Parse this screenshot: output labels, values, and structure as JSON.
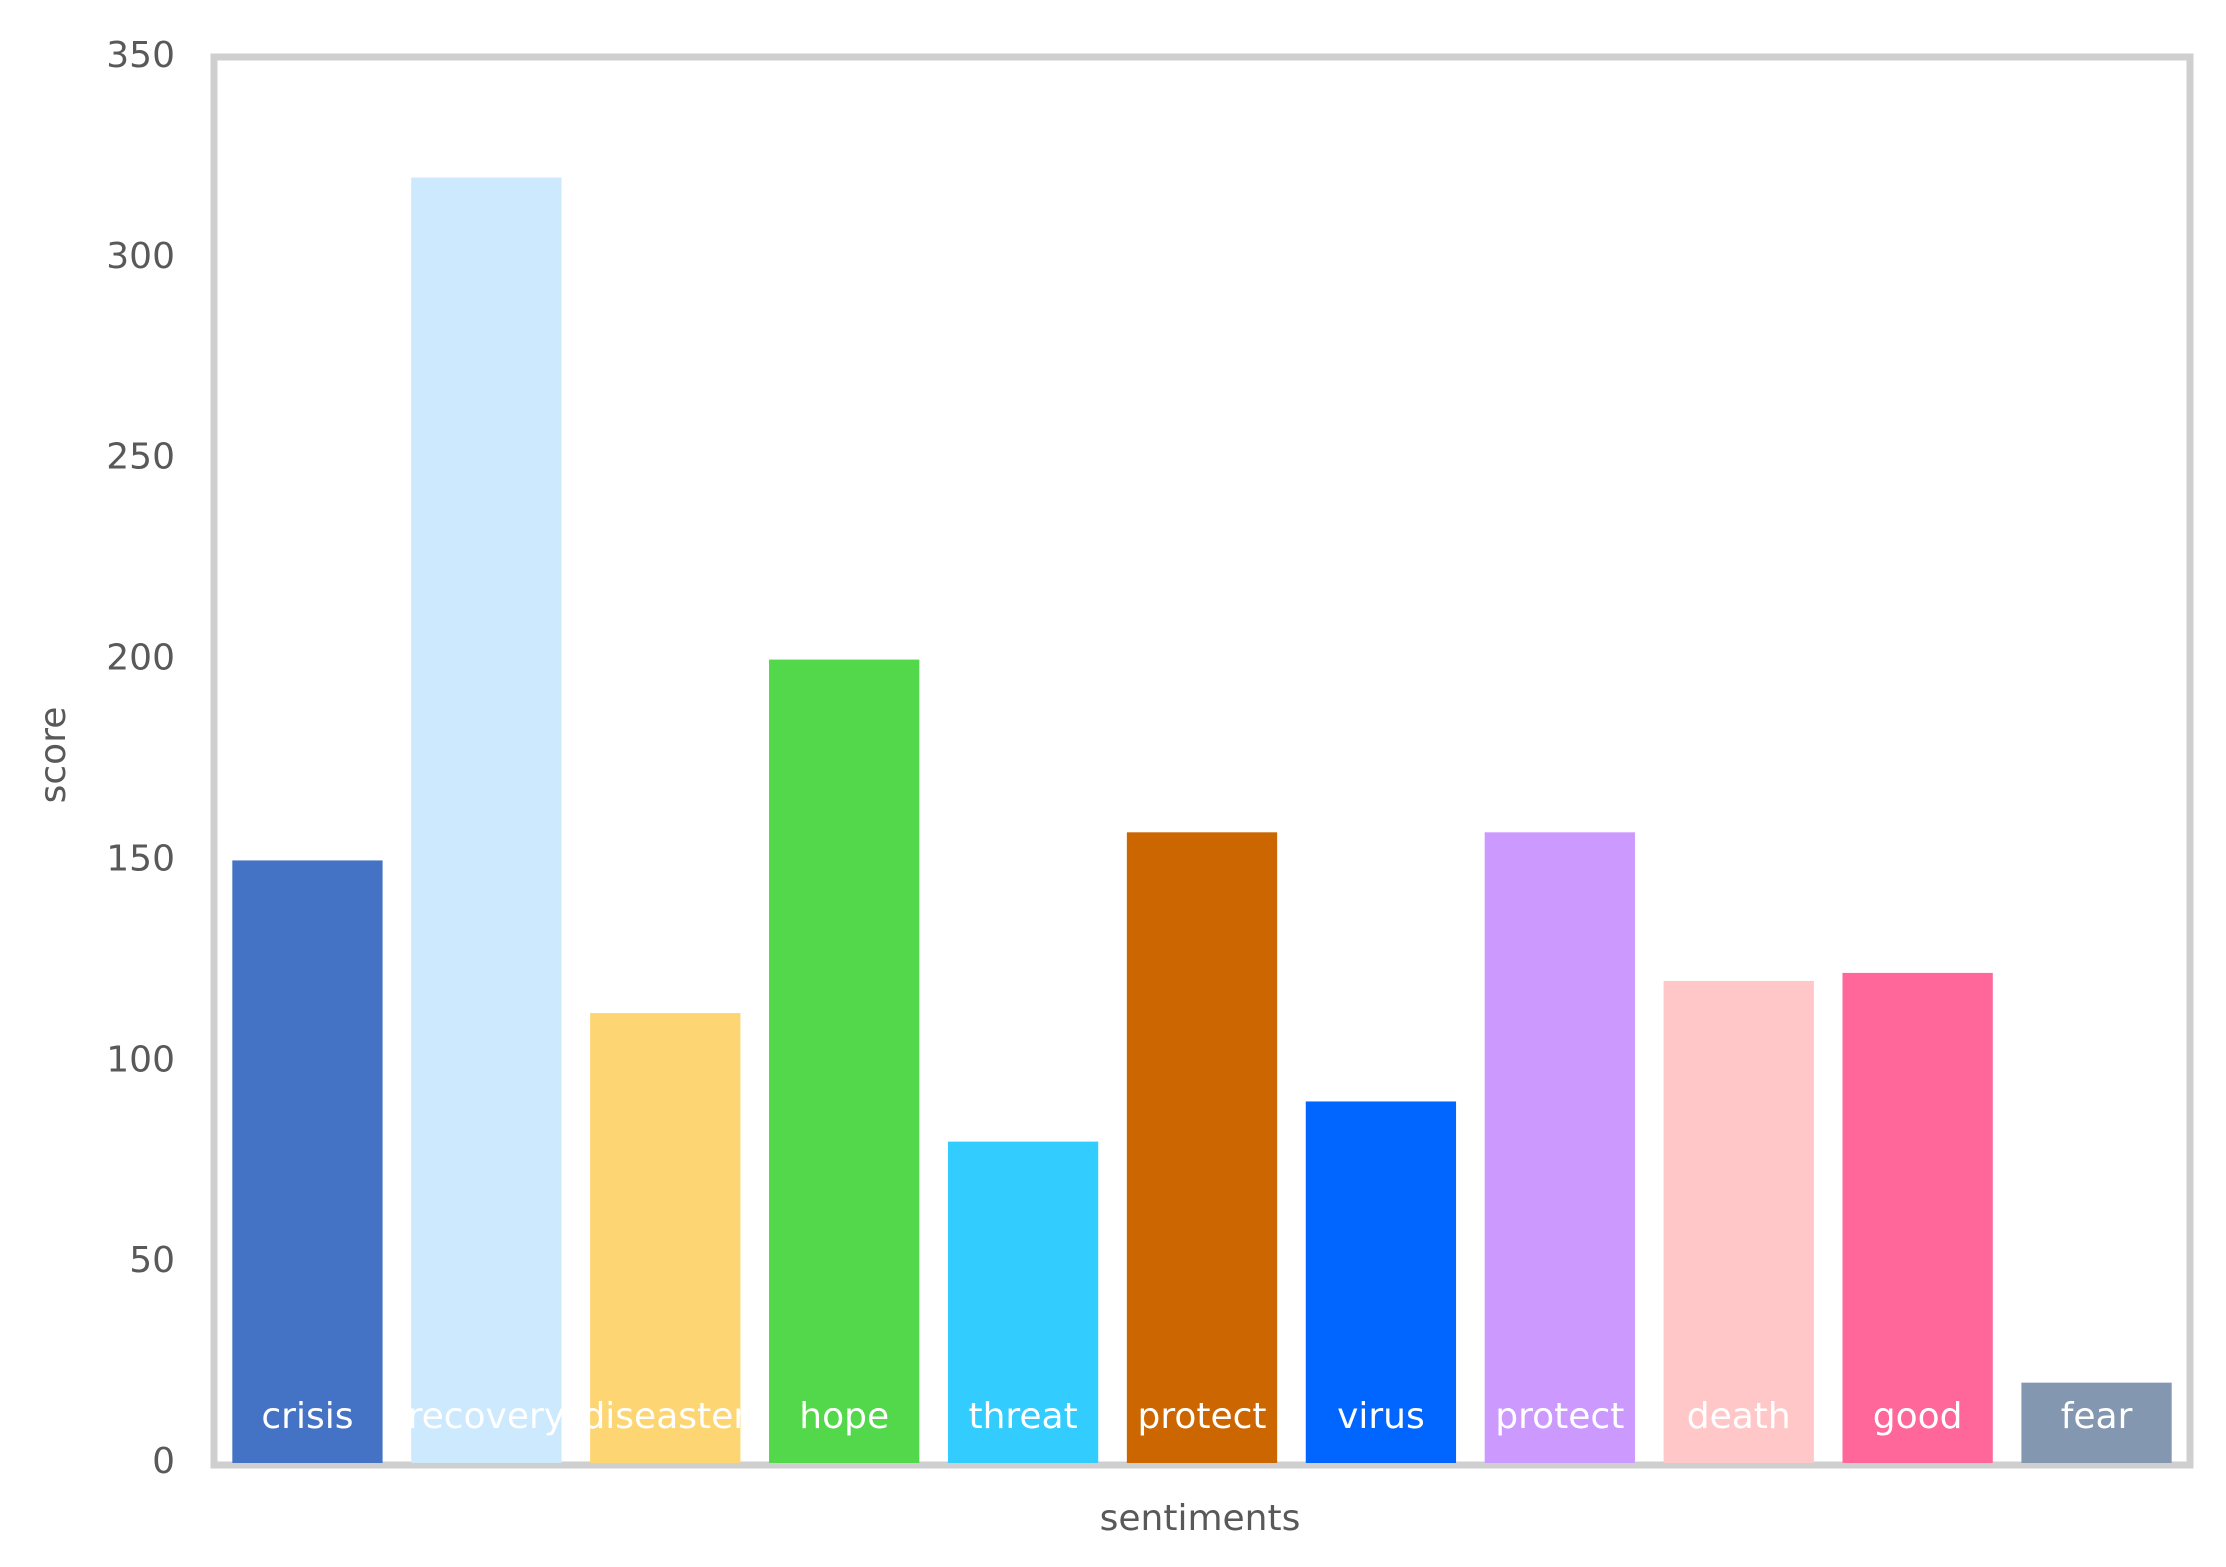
{
  "chart_data": {
    "type": "bar",
    "xlabel": "sentiments",
    "ylabel": "score",
    "categories": [
      "crisis",
      "recovery",
      "diseaster",
      "hope",
      "threat",
      "protect",
      "virus",
      "protect",
      "death",
      "good",
      "fear"
    ],
    "values": [
      150,
      320,
      112,
      200,
      80,
      157,
      90,
      157,
      120,
      122,
      20
    ],
    "colors": [
      "#4472c4",
      "#cce9fd",
      "#fdd673",
      "#52d84a",
      "#33ccff",
      "#cc6600",
      "#0066ff",
      "#cc99ff",
      "#ffc7c7",
      "#ff6699",
      "#8497b0"
    ],
    "ylim": [
      0,
      350
    ],
    "yticks": [
      0,
      50,
      100,
      150,
      200,
      250,
      300,
      350
    ],
    "grid": false
  }
}
